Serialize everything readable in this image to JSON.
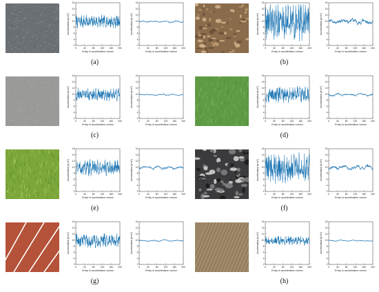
{
  "panels": [
    {
      "id": "a",
      "label": "(a)",
      "surface_colors": [
        "#6b7075",
        "#8a8f93",
        "#9ea2a5",
        "#55595c"
      ],
      "texture": "asphalt",
      "raw_amp": 1.7,
      "filt_amp": 0.25
    },
    {
      "id": "b",
      "label": "(b)",
      "surface_colors": [
        "#8a6c4c",
        "#b38f63",
        "#6a5238",
        "#d0b08a"
      ],
      "texture": "gravel",
      "raw_amp": 5.0,
      "filt_amp": 0.9
    },
    {
      "id": "c",
      "label": "(c)",
      "surface_colors": [
        "#9a9a98",
        "#a8a8a6",
        "#8e8e8c",
        "#b2b2b0"
      ],
      "texture": "concrete",
      "raw_amp": 1.7,
      "filt_amp": 0.2
    },
    {
      "id": "d",
      "label": "(d)",
      "surface_colors": [
        "#5f9a45",
        "#6eaa50",
        "#4f8a38",
        "#7cb65c"
      ],
      "texture": "turf",
      "raw_amp": 2.1,
      "filt_amp": 0.35
    },
    {
      "id": "e",
      "label": "(e)",
      "surface_colors": [
        "#7aa63a",
        "#93bb4a",
        "#5f8a2c",
        "#a7c860"
      ],
      "texture": "grass",
      "raw_amp": 2.1,
      "filt_amp": 0.45
    },
    {
      "id": "f",
      "label": "(f)",
      "surface_colors": [
        "#3b3b3d",
        "#7a7a7c",
        "#c8c8c8",
        "#1d1d1e"
      ],
      "texture": "stones",
      "raw_amp": 4.0,
      "filt_amp": 0.6
    },
    {
      "id": "g",
      "label": "(g)",
      "surface_colors": [
        "#b5523a",
        "#c4634a",
        "#a34632",
        "#ffffff"
      ],
      "texture": "track",
      "raw_amp": 1.9,
      "filt_amp": 0.2
    },
    {
      "id": "h",
      "label": "(h)",
      "surface_colors": [
        "#9c8566",
        "#b09a78",
        "#86704f",
        "#c4ad88"
      ],
      "texture": "deck",
      "raw_amp": 1.2,
      "filt_amp": 0.15
    }
  ],
  "chart_data": {
    "type": "line",
    "xlabel": "Entry in acceleration vector",
    "ylabel": "Acceleration (m/s²)",
    "xlim": [
      0,
      200
    ],
    "ylim": [
      2,
      16
    ],
    "xticks": [
      0,
      40,
      80,
      120,
      160,
      200
    ],
    "yticks": [
      2,
      4,
      6,
      8,
      10,
      12,
      14,
      16
    ],
    "series_color": "#1f77b4",
    "baseline": 9.8,
    "samples": 200
  }
}
